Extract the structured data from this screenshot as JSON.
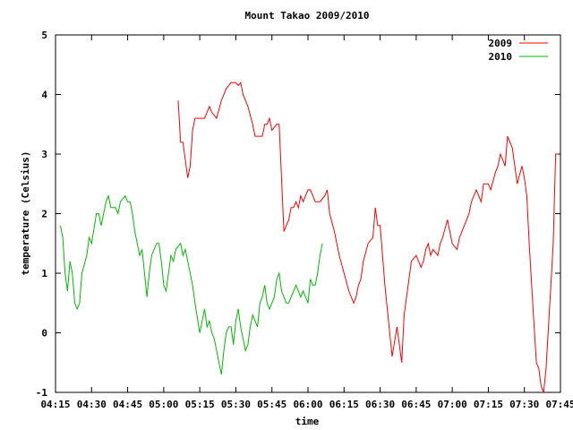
{
  "chart_data": {
    "type": "line",
    "title": "Mount Takao 2009/2010",
    "xlabel": "time",
    "ylabel": "temperature (Celsius)",
    "ylim": [
      -1,
      5
    ],
    "yticks": [
      "-1",
      "0",
      "1",
      "2",
      "3",
      "4",
      "5"
    ],
    "xlim": [
      "04:15",
      "07:45"
    ],
    "xticks": [
      "04:15",
      "04:30",
      "04:45",
      "05:00",
      "05:15",
      "05:30",
      "05:45",
      "06:00",
      "06:15",
      "06:30",
      "06:45",
      "07:00",
      "07:15",
      "07:30",
      "07:45"
    ],
    "grid": false,
    "legend_position": "top-right",
    "series": [
      {
        "name": "2009",
        "color": "#ff0000",
        "x": [
          "05:06",
          "05:07",
          "05:08",
          "05:09",
          "05:10",
          "05:11",
          "05:12",
          "05:13",
          "05:15",
          "05:17",
          "05:19",
          "05:20",
          "05:22",
          "05:24",
          "05:26",
          "05:28",
          "05:29",
          "05:30",
          "05:31",
          "05:32",
          "05:33",
          "05:35",
          "05:37",
          "05:38",
          "05:39",
          "05:40",
          "05:41",
          "05:42",
          "05:43",
          "05:44",
          "05:45",
          "05:47",
          "05:48",
          "05:50",
          "05:51",
          "05:52",
          "05:53",
          "05:54",
          "05:55",
          "05:56",
          "05:57",
          "05:58",
          "06:00",
          "06:01",
          "06:02",
          "06:03",
          "06:05",
          "06:07",
          "06:08",
          "06:09",
          "06:11",
          "06:12",
          "06:13",
          "06:15",
          "06:17",
          "06:19",
          "06:20",
          "06:21",
          "06:22",
          "06:23",
          "06:25",
          "06:27",
          "06:28",
          "06:29",
          "06:30",
          "06:32",
          "06:33",
          "06:35",
          "06:37",
          "06:39",
          "06:40",
          "06:42",
          "06:43",
          "06:45",
          "06:47",
          "06:48",
          "06:49",
          "06:50",
          "06:51",
          "06:52",
          "06:54",
          "06:55",
          "06:56",
          "06:58",
          "07:00",
          "07:02",
          "07:03",
          "07:05",
          "07:07",
          "07:08",
          "07:10",
          "07:12",
          "07:13",
          "07:15",
          "07:16",
          "07:18",
          "07:19",
          "07:20",
          "07:22",
          "07:23",
          "07:25",
          "07:27",
          "07:29",
          "07:30",
          "07:31",
          "07:32",
          "07:33",
          "07:35",
          "07:36",
          "07:37",
          "07:38",
          "07:39",
          "07:40",
          "07:41",
          "07:42",
          "07:43",
          "07:44"
        ],
        "values": [
          3.9,
          3.2,
          3.2,
          2.9,
          2.6,
          2.8,
          3.4,
          3.6,
          3.6,
          3.6,
          3.8,
          3.7,
          3.6,
          3.9,
          4.1,
          4.2,
          4.2,
          4.2,
          4.15,
          4.2,
          4.0,
          3.8,
          3.5,
          3.3,
          3.3,
          3.3,
          3.3,
          3.5,
          3.5,
          3.6,
          3.4,
          3.5,
          3.5,
          1.7,
          1.8,
          1.9,
          2.1,
          2.1,
          2.2,
          2.1,
          2.3,
          2.2,
          2.4,
          2.4,
          2.3,
          2.2,
          2.2,
          2.3,
          2.4,
          2.0,
          1.7,
          1.5,
          1.3,
          1.0,
          0.7,
          0.5,
          0.6,
          0.8,
          0.9,
          1.2,
          1.5,
          1.6,
          2.1,
          1.8,
          1.8,
          0.8,
          0.4,
          -0.4,
          0.1,
          -0.5,
          0.3,
          0.9,
          1.2,
          1.3,
          1.1,
          1.2,
          1.4,
          1.5,
          1.3,
          1.4,
          1.3,
          1.5,
          1.6,
          1.9,
          1.5,
          1.4,
          1.6,
          1.8,
          2.0,
          2.2,
          2.4,
          2.2,
          2.5,
          2.5,
          2.4,
          2.7,
          2.8,
          3.0,
          2.8,
          3.3,
          3.1,
          2.5,
          2.8,
          2.6,
          2.3,
          1.5,
          0.8,
          -0.5,
          -0.6,
          -0.9,
          -1.0,
          -0.6,
          0.1,
          0.8,
          1.5,
          3.0,
          3.0
        ]
      },
      {
        "name": "2010",
        "color": "#00bb00",
        "x": [
          "04:17",
          "04:18",
          "04:19",
          "04:20",
          "04:21",
          "04:22",
          "04:23",
          "04:24",
          "04:25",
          "04:26",
          "04:28",
          "04:29",
          "04:30",
          "04:32",
          "04:33",
          "04:34",
          "04:36",
          "04:37",
          "04:38",
          "04:39",
          "04:40",
          "04:41",
          "04:42",
          "04:44",
          "04:45",
          "04:46",
          "04:47",
          "04:48",
          "04:50",
          "04:51",
          "04:53",
          "04:54",
          "04:55",
          "04:57",
          "04:58",
          "04:59",
          "05:00",
          "05:01",
          "05:03",
          "05:04",
          "05:05",
          "05:07",
          "05:08",
          "05:09",
          "05:10",
          "05:11",
          "05:12",
          "05:13",
          "05:15",
          "05:16",
          "05:17",
          "05:18",
          "05:19",
          "05:20",
          "05:21",
          "05:23",
          "05:24",
          "05:25",
          "05:26",
          "05:27",
          "05:28",
          "05:29",
          "05:30",
          "05:31",
          "05:32",
          "05:33",
          "05:34",
          "05:35",
          "05:36",
          "05:37",
          "05:38",
          "05:39",
          "05:40",
          "05:41",
          "05:42",
          "05:43",
          "05:44",
          "05:45",
          "05:46",
          "05:47",
          "05:48",
          "05:49",
          "05:50",
          "05:51",
          "05:52",
          "05:53",
          "05:54",
          "05:55",
          "05:56",
          "05:57",
          "05:58",
          "06:00",
          "06:01",
          "06:02",
          "06:03",
          "06:04",
          "06:05",
          "06:06"
        ],
        "values": [
          1.8,
          1.6,
          1.0,
          0.7,
          1.2,
          1.0,
          0.5,
          0.4,
          0.5,
          1.0,
          1.3,
          1.6,
          1.5,
          2.0,
          2.0,
          1.8,
          2.2,
          2.3,
          2.1,
          2.1,
          2.1,
          2.0,
          2.2,
          2.3,
          2.2,
          2.2,
          2.0,
          1.7,
          1.3,
          1.4,
          0.6,
          1.0,
          1.3,
          1.5,
          1.5,
          1.2,
          0.8,
          0.7,
          1.3,
          1.2,
          1.4,
          1.5,
          1.3,
          1.4,
          1.2,
          1.0,
          0.8,
          0.5,
          0.0,
          0.2,
          0.4,
          0.1,
          0.2,
          0.0,
          -0.1,
          -0.5,
          -0.7,
          -0.3,
          0.0,
          0.1,
          0.1,
          -0.2,
          0.2,
          0.4,
          0.1,
          -0.1,
          -0.3,
          -0.2,
          0.1,
          0.3,
          0.2,
          0.1,
          0.5,
          0.6,
          0.8,
          0.5,
          0.4,
          0.5,
          0.6,
          0.9,
          1.0,
          0.7,
          0.6,
          0.5,
          0.5,
          0.6,
          0.7,
          0.8,
          0.7,
          0.6,
          0.7,
          0.5,
          0.9,
          0.8,
          0.8,
          1.0,
          1.3,
          1.5
        ]
      }
    ]
  }
}
